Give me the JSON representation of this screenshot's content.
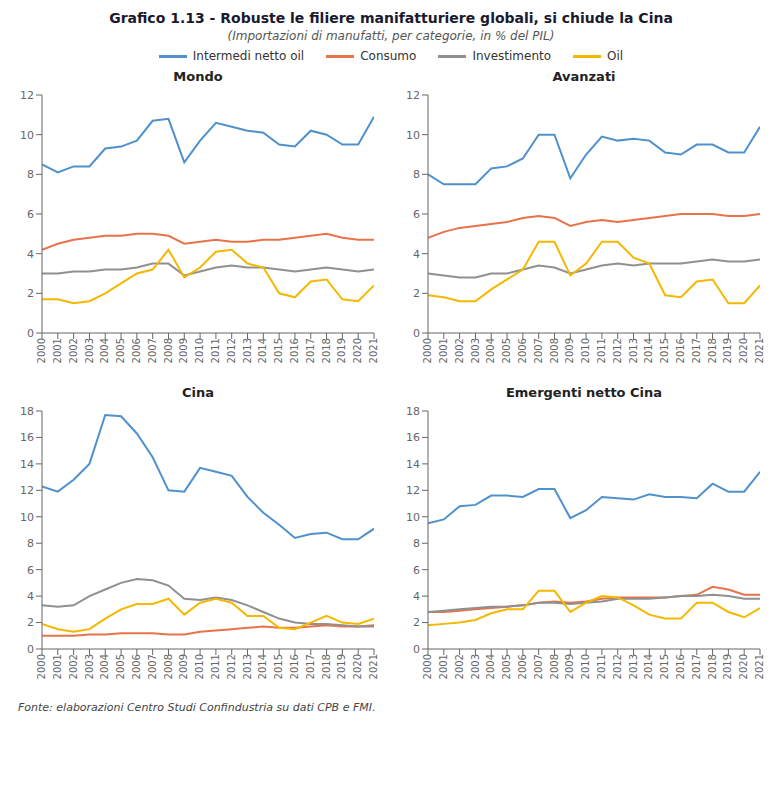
{
  "title": "Grafico 1.13 - Robuste le filiere manifatturiere globali, si chiude la Cina",
  "subtitle": "(Importazioni di manufatti, per categorie, in % del PIL)",
  "source": "Fonte: elaborazioni Centro Studi Confindustria su dati CPB e FMI.",
  "legend": "top",
  "chart_data": [
    {
      "type": "line",
      "title": "Mondo",
      "x": [
        2000,
        2001,
        2002,
        2003,
        2004,
        2005,
        2006,
        2007,
        2008,
        2009,
        2010,
        2011,
        2012,
        2013,
        2014,
        2015,
        2016,
        2017,
        2018,
        2019,
        2020,
        2021
      ],
      "xlim": [
        2000,
        2021
      ],
      "xticks": [
        2000,
        2001,
        2002,
        2003,
        2004,
        2005,
        2006,
        2007,
        2008,
        2009,
        2010,
        2011,
        2012,
        2013,
        2014,
        2015,
        2016,
        2017,
        2018,
        2019,
        2020,
        2021
      ],
      "ylim": [
        0,
        12
      ],
      "yticks": [
        0,
        2,
        4,
        6,
        8,
        10,
        12
      ],
      "grid": false,
      "series": [
        {
          "name": "Intermedi netto oil",
          "color": "#4F91CD",
          "values": [
            8.5,
            8.1,
            8.4,
            8.4,
            9.3,
            9.4,
            9.7,
            10.7,
            10.8,
            8.6,
            9.7,
            10.6,
            10.4,
            10.2,
            10.1,
            9.5,
            9.4,
            10.2,
            10.0,
            9.5,
            9.5,
            10.9
          ]
        },
        {
          "name": "Consumo",
          "color": "#E8734A",
          "values": [
            4.2,
            4.5,
            4.7,
            4.8,
            4.9,
            4.9,
            5.0,
            5.0,
            4.9,
            4.5,
            4.6,
            4.7,
            4.6,
            4.6,
            4.7,
            4.7,
            4.8,
            4.9,
            5.0,
            4.8,
            4.7,
            4.7
          ]
        },
        {
          "name": "Investimento",
          "color": "#909090",
          "values": [
            3.0,
            3.0,
            3.1,
            3.1,
            3.2,
            3.2,
            3.3,
            3.5,
            3.5,
            2.9,
            3.1,
            3.3,
            3.4,
            3.3,
            3.3,
            3.2,
            3.1,
            3.2,
            3.3,
            3.2,
            3.1,
            3.2
          ]
        },
        {
          "name": "Oil",
          "color": "#F5B800",
          "values": [
            1.7,
            1.7,
            1.5,
            1.6,
            2.0,
            2.5,
            3.0,
            3.2,
            4.2,
            2.8,
            3.3,
            4.1,
            4.2,
            3.5,
            3.3,
            2.0,
            1.8,
            2.6,
            2.7,
            1.7,
            1.6,
            2.4
          ]
        }
      ]
    },
    {
      "type": "line",
      "title": "Avanzati",
      "x": [
        2000,
        2001,
        2002,
        2003,
        2004,
        2005,
        2006,
        2007,
        2008,
        2009,
        2010,
        2011,
        2012,
        2013,
        2014,
        2015,
        2016,
        2017,
        2018,
        2019,
        2020,
        2021
      ],
      "xlim": [
        2000,
        2021
      ],
      "xticks": [
        2000,
        2001,
        2002,
        2003,
        2004,
        2005,
        2006,
        2007,
        2008,
        2009,
        2010,
        2011,
        2012,
        2013,
        2014,
        2015,
        2016,
        2017,
        2018,
        2019,
        2020,
        2021
      ],
      "ylim": [
        0,
        12
      ],
      "yticks": [
        0,
        2,
        4,
        6,
        8,
        10,
        12
      ],
      "grid": false,
      "series": [
        {
          "name": "Intermedi netto oil",
          "color": "#4F91CD",
          "values": [
            8.0,
            7.5,
            7.5,
            7.5,
            8.3,
            8.4,
            8.8,
            10.0,
            10.0,
            7.8,
            9.0,
            9.9,
            9.7,
            9.8,
            9.7,
            9.1,
            9.0,
            9.5,
            9.5,
            9.1,
            9.1,
            10.4
          ]
        },
        {
          "name": "Consumo",
          "color": "#E8734A",
          "values": [
            4.8,
            5.1,
            5.3,
            5.4,
            5.5,
            5.6,
            5.8,
            5.9,
            5.8,
            5.4,
            5.6,
            5.7,
            5.6,
            5.7,
            5.8,
            5.9,
            6.0,
            6.0,
            6.0,
            5.9,
            5.9,
            6.0
          ]
        },
        {
          "name": "Investimento",
          "color": "#909090",
          "values": [
            3.0,
            2.9,
            2.8,
            2.8,
            3.0,
            3.0,
            3.2,
            3.4,
            3.3,
            3.0,
            3.2,
            3.4,
            3.5,
            3.4,
            3.5,
            3.5,
            3.5,
            3.6,
            3.7,
            3.6,
            3.6,
            3.7
          ]
        },
        {
          "name": "Oil",
          "color": "#F5B800",
          "values": [
            1.9,
            1.8,
            1.6,
            1.6,
            2.2,
            2.7,
            3.2,
            4.6,
            4.6,
            2.9,
            3.5,
            4.6,
            4.6,
            3.8,
            3.5,
            1.9,
            1.8,
            2.6,
            2.7,
            1.5,
            1.5,
            2.4
          ]
        }
      ]
    },
    {
      "type": "line",
      "title": "Cina",
      "x": [
        2000,
        2001,
        2002,
        2003,
        2004,
        2005,
        2006,
        2007,
        2008,
        2009,
        2010,
        2011,
        2012,
        2013,
        2014,
        2015,
        2016,
        2017,
        2018,
        2019,
        2020,
        2021
      ],
      "xlim": [
        2000,
        2021
      ],
      "xticks": [
        2000,
        2001,
        2002,
        2003,
        2004,
        2005,
        2006,
        2007,
        2008,
        2009,
        2010,
        2011,
        2012,
        2013,
        2014,
        2015,
        2016,
        2017,
        2018,
        2019,
        2020,
        2021
      ],
      "ylim": [
        0,
        18
      ],
      "yticks": [
        0,
        2,
        4,
        6,
        8,
        10,
        12,
        14,
        16,
        18
      ],
      "grid": false,
      "series": [
        {
          "name": "Intermedi netto oil",
          "color": "#4F91CD",
          "values": [
            12.3,
            11.9,
            12.8,
            14.0,
            17.7,
            17.6,
            16.3,
            14.5,
            12.0,
            11.9,
            13.7,
            13.4,
            13.1,
            11.5,
            10.3,
            9.4,
            8.4,
            8.7,
            8.8,
            8.3,
            8.3,
            9.1
          ]
        },
        {
          "name": "Consumo",
          "color": "#E8734A",
          "values": [
            1.0,
            1.0,
            1.0,
            1.1,
            1.1,
            1.2,
            1.2,
            1.2,
            1.1,
            1.1,
            1.3,
            1.4,
            1.5,
            1.6,
            1.7,
            1.6,
            1.6,
            1.7,
            1.8,
            1.7,
            1.7,
            1.8
          ]
        },
        {
          "name": "Investimento",
          "color": "#909090",
          "values": [
            3.3,
            3.2,
            3.3,
            4.0,
            4.5,
            5.0,
            5.3,
            5.2,
            4.8,
            3.8,
            3.7,
            3.9,
            3.7,
            3.3,
            2.8,
            2.3,
            2.0,
            1.9,
            1.9,
            1.8,
            1.7,
            1.7
          ]
        },
        {
          "name": "Oil",
          "color": "#F5B800",
          "values": [
            1.9,
            1.5,
            1.3,
            1.5,
            2.3,
            3.0,
            3.4,
            3.4,
            3.8,
            2.6,
            3.5,
            3.8,
            3.5,
            2.5,
            2.5,
            1.6,
            1.5,
            2.0,
            2.5,
            2.0,
            1.9,
            2.3
          ]
        }
      ]
    },
    {
      "type": "line",
      "title": "Emergenti netto Cina",
      "x": [
        2000,
        2001,
        2002,
        2003,
        2004,
        2005,
        2006,
        2007,
        2008,
        2009,
        2010,
        2011,
        2012,
        2013,
        2014,
        2015,
        2016,
        2017,
        2018,
        2019,
        2020,
        2021
      ],
      "xlim": [
        2000,
        2021
      ],
      "xticks": [
        2000,
        2001,
        2002,
        2003,
        2004,
        2005,
        2006,
        2007,
        2008,
        2009,
        2010,
        2011,
        2012,
        2013,
        2014,
        2015,
        2016,
        2017,
        2018,
        2019,
        2020,
        2021
      ],
      "ylim": [
        0,
        18
      ],
      "yticks": [
        0,
        2,
        4,
        6,
        8,
        10,
        12,
        14,
        16,
        18
      ],
      "grid": false,
      "series": [
        {
          "name": "Intermedi netto oil",
          "color": "#4F91CD",
          "values": [
            9.5,
            9.8,
            10.8,
            10.9,
            11.6,
            11.6,
            11.5,
            12.1,
            12.1,
            9.9,
            10.5,
            11.5,
            11.4,
            11.3,
            11.7,
            11.5,
            11.5,
            11.4,
            12.5,
            11.9,
            11.9,
            13.4
          ]
        },
        {
          "name": "Consumo",
          "color": "#E8734A",
          "values": [
            2.8,
            2.8,
            2.9,
            3.0,
            3.1,
            3.2,
            3.3,
            3.5,
            3.6,
            3.5,
            3.6,
            3.8,
            3.9,
            3.9,
            3.9,
            3.9,
            4.0,
            4.1,
            4.7,
            4.5,
            4.1,
            4.1
          ]
        },
        {
          "name": "Investimento",
          "color": "#909090",
          "values": [
            2.8,
            2.9,
            3.0,
            3.1,
            3.2,
            3.2,
            3.3,
            3.5,
            3.5,
            3.4,
            3.5,
            3.6,
            3.8,
            3.8,
            3.8,
            3.9,
            4.0,
            4.0,
            4.1,
            4.0,
            3.8,
            3.8
          ]
        },
        {
          "name": "Oil",
          "color": "#F5B800",
          "values": [
            1.8,
            1.9,
            2.0,
            2.2,
            2.7,
            3.0,
            3.0,
            4.4,
            4.4,
            2.8,
            3.5,
            4.0,
            3.9,
            3.3,
            2.6,
            2.3,
            2.3,
            3.5,
            3.5,
            2.8,
            2.4,
            3.1
          ]
        }
      ]
    }
  ]
}
